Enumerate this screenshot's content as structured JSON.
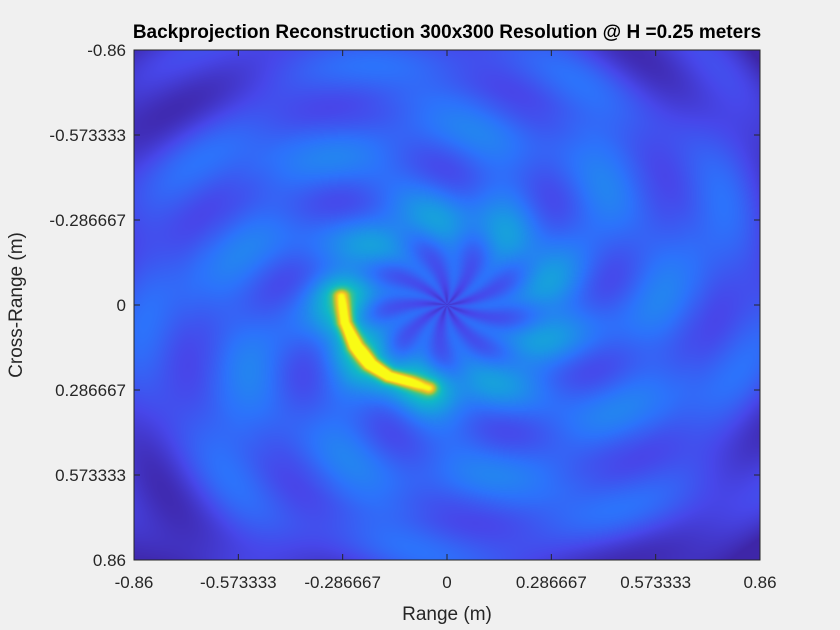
{
  "chart_data": {
    "type": "heatmap",
    "title": "Backprojection Reconstruction 300x300 Resolution @ H =0.25 meters",
    "xlabel": "Range (m)",
    "ylabel": "Cross-Range (m)",
    "xlim": [
      -0.86,
      0.86
    ],
    "ylim": [
      -0.86,
      0.86
    ],
    "y_direction": "reverse",
    "resolution": [
      300,
      300
    ],
    "xticks": [
      "-0.86",
      "-0.573333",
      "-0.286667",
      "0",
      "0.286667",
      "0.573333",
      "0.86"
    ],
    "yticks": [
      "-0.86",
      "-0.573333",
      "-0.286667",
      "0",
      "0.286667",
      "0.573333",
      "0.86"
    ],
    "colormap": "parula",
    "colormap_stops": [
      "#3e26a8",
      "#4747ea",
      "#2c73fb",
      "#1a98e3",
      "#10b7c8",
      "#3bc58d",
      "#a6c33a",
      "#f6bd27",
      "#f9fb15"
    ],
    "background_level": 0.22,
    "features": [
      {
        "kind": "arc",
        "points": [
          [
            -0.29,
            -0.03
          ],
          [
            -0.28,
            0.06
          ],
          [
            -0.25,
            0.14
          ],
          [
            -0.21,
            0.2
          ],
          [
            -0.16,
            0.24
          ],
          [
            -0.1,
            0.26
          ],
          [
            -0.05,
            0.28
          ]
        ],
        "peak_level": 1.0
      },
      {
        "kind": "ring",
        "center": [
          0.0,
          0.0
        ],
        "radius": 0.27,
        "level": 0.12
      },
      {
        "kind": "central_low",
        "center": [
          0.0,
          0.0
        ],
        "radius": 0.12,
        "level": -0.12
      }
    ],
    "grid": false,
    "colorbar": false
  }
}
